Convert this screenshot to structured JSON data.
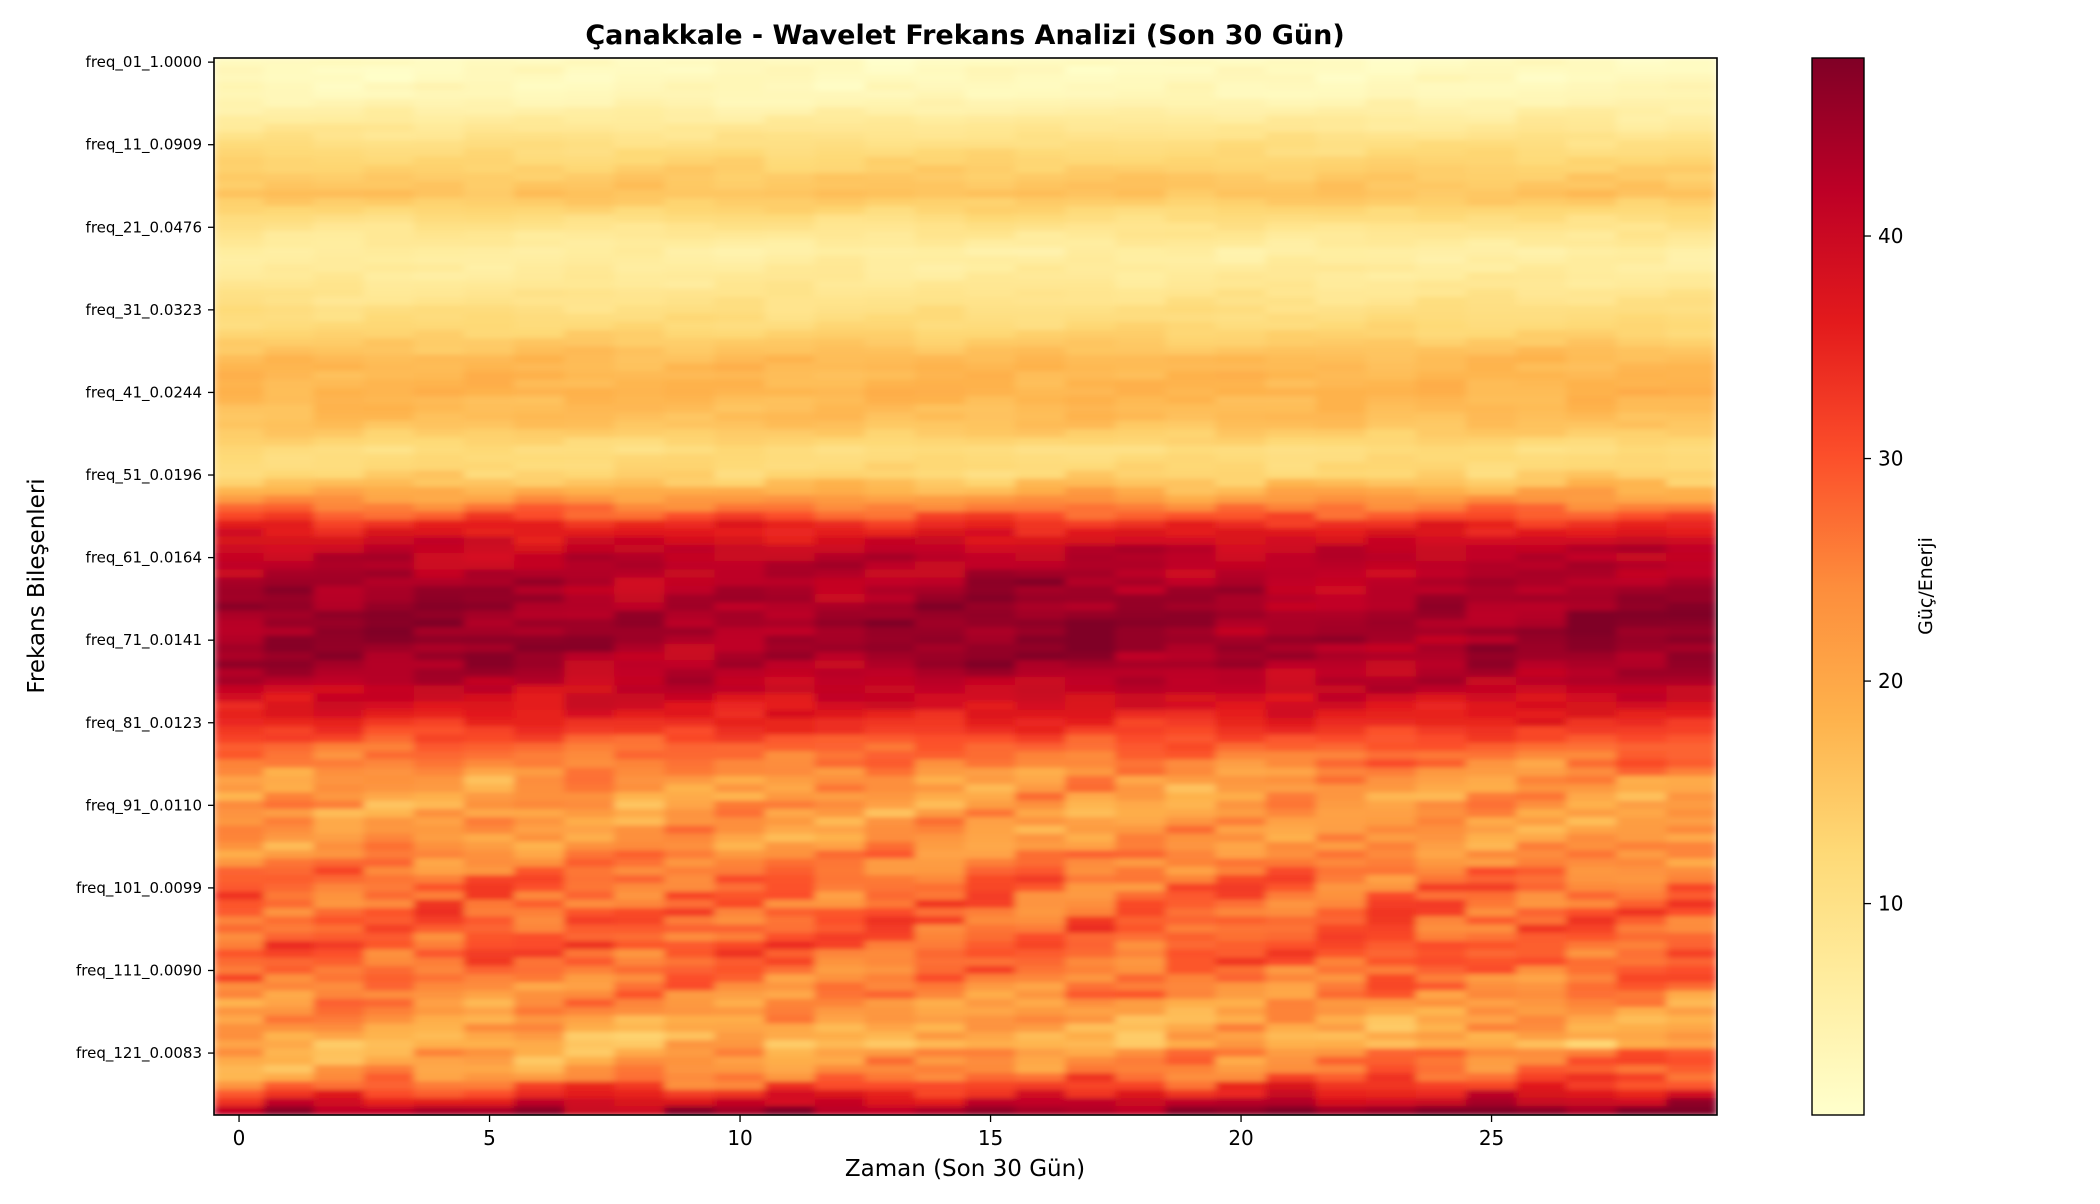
{
  "chart_data": {
    "type": "heatmap",
    "title": "Çanakkale - Wavelet Frekans Analizi (Son 30 Gün)",
    "xlabel": "Zaman (Son 30 Gün)",
    "ylabel": "Frekans Bileşenleri",
    "colorbar_label": "Güç/Enerji",
    "colormap": [
      "#ffffcc",
      "#ffeda0",
      "#fed976",
      "#feb24c",
      "#fd8d3c",
      "#fc4e2a",
      "#e31a1c",
      "#bd0026",
      "#800026"
    ],
    "value_range": [
      0.5,
      48
    ],
    "x_range": [
      -0.5,
      29.5
    ],
    "x_ticks": [
      0,
      5,
      10,
      15,
      20,
      25
    ],
    "x_tick_labels": [
      "0",
      "5",
      "10",
      "15",
      "20",
      "25"
    ],
    "colorbar_ticks": [
      10,
      20,
      30,
      40
    ],
    "colorbar_tick_labels": [
      "10",
      "20",
      "30",
      "40"
    ],
    "n_rows": 128,
    "n_cols": 30,
    "y_ticks": [
      {
        "row": 0,
        "label": "freq_01_1.0000"
      },
      {
        "row": 10,
        "label": "freq_11_0.0909"
      },
      {
        "row": 20,
        "label": "freq_21_0.0476"
      },
      {
        "row": 30,
        "label": "freq_31_0.0323"
      },
      {
        "row": 40,
        "label": "freq_41_0.0244"
      },
      {
        "row": 50,
        "label": "freq_51_0.0196"
      },
      {
        "row": 60,
        "label": "freq_61_0.0164"
      },
      {
        "row": 70,
        "label": "freq_71_0.0141"
      },
      {
        "row": 80,
        "label": "freq_81_0.0123"
      },
      {
        "row": 90,
        "label": "freq_91_0.0110"
      },
      {
        "row": 100,
        "label": "freq_101_0.0099"
      },
      {
        "row": 110,
        "label": "freq_111_0.0090"
      },
      {
        "row": 120,
        "label": "freq_121_0.0083"
      }
    ],
    "row_profile": [
      [
        0,
        2
      ],
      [
        4,
        3
      ],
      [
        8,
        8
      ],
      [
        12,
        13
      ],
      [
        16,
        16
      ],
      [
        20,
        9
      ],
      [
        23,
        6
      ],
      [
        27,
        8
      ],
      [
        32,
        12
      ],
      [
        36,
        17
      ],
      [
        40,
        18
      ],
      [
        44,
        16
      ],
      [
        47,
        11
      ],
      [
        50,
        13
      ],
      [
        53,
        22
      ],
      [
        56,
        34
      ],
      [
        59,
        41
      ],
      [
        63,
        43
      ],
      [
        67,
        45
      ],
      [
        71,
        45
      ],
      [
        75,
        42
      ],
      [
        79,
        36
      ],
      [
        83,
        28
      ],
      [
        87,
        22
      ],
      [
        91,
        21
      ],
      [
        95,
        23
      ],
      [
        99,
        27
      ],
      [
        103,
        28
      ],
      [
        107,
        29
      ],
      [
        111,
        26
      ],
      [
        115,
        22
      ],
      [
        119,
        18
      ],
      [
        122,
        20
      ],
      [
        124,
        27
      ],
      [
        126,
        36
      ],
      [
        127,
        42
      ]
    ]
  }
}
